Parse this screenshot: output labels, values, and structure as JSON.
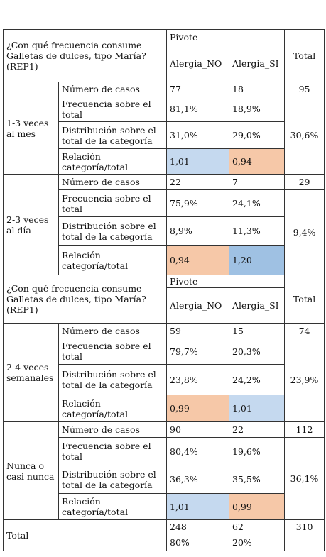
{
  "colors": {
    "light_blue": "#c5d9ef",
    "salmon": "#f6c8a8",
    "mid_blue": "#9fc1e3"
  },
  "blocks": [
    {
      "question": "¿Con qué frecuencia consume Galletas de dulces, tipo María? (REP1)",
      "pivot": "Pivote",
      "col_no": "Alergia_NO",
      "col_si": "Alergia_SI",
      "total": "Total",
      "groups": [
        {
          "label": "1-3 veces al mes",
          "total_pct": "30,6%",
          "rows": [
            {
              "label": "Número de casos",
              "no": "77",
              "si": "18",
              "tot": "95"
            },
            {
              "label": "Frecuencia sobre el total",
              "no": "81,1%",
              "si": "18,9%"
            },
            {
              "label": "Distribución sobre el total de la categoría",
              "no": "31,0%",
              "si": "29,0%"
            },
            {
              "label": "Relación categoría/total",
              "no": "1,01",
              "si": "0,94"
            }
          ]
        },
        {
          "label": "2-3 veces al día",
          "total_pct": "9,4%",
          "rows": [
            {
              "label": "Número de casos",
              "no": "22",
              "si": "7",
              "tot": "29"
            },
            {
              "label": "Frecuencia sobre el total",
              "no": "75,9%",
              "si": "24,1%"
            },
            {
              "label": "Distribución sobre el total de la categoría",
              "no": "8,9%",
              "si": "11,3%"
            },
            {
              "label": "Relación categoría/total",
              "no": "0,94",
              "si": "1,20"
            }
          ]
        }
      ]
    },
    {
      "question": "¿Con qué frecuencia consume Galletas de dulces, tipo María? (REP1)",
      "pivot": "Pivote",
      "col_no": "Alergia_NO",
      "col_si": "Alergia_SI",
      "total": "Total",
      "groups": [
        {
          "label": "2-4 veces semanales",
          "total_pct": "23,9%",
          "rows": [
            {
              "label": "Número de casos",
              "no": "59",
              "si": "15",
              "tot": "74"
            },
            {
              "label": "Frecuencia sobre el total",
              "no": "79,7%",
              "si": "20,3%"
            },
            {
              "label": "Distribución sobre el total de la categoría",
              "no": "23,8%",
              "si": "24,2%"
            },
            {
              "label": "Relación categoría/total",
              "no": "0,99",
              "si": "1,01"
            }
          ]
        },
        {
          "label": "Nunca o casi nunca",
          "total_pct": "36,1%",
          "rows": [
            {
              "label": "Número de casos",
              "no": "90",
              "si": "22",
              "tot": "112"
            },
            {
              "label": "Frecuencia sobre el total",
              "no": "80,4%",
              "si": "19,6%"
            },
            {
              "label": "Distribución sobre el total de la categoría",
              "no": "36,3%",
              "si": "35,5%"
            },
            {
              "label": "Relación categoría/total",
              "no": "1,01",
              "si": "0,99"
            }
          ]
        }
      ]
    }
  ],
  "grand_total": {
    "label": "Total",
    "no": "248",
    "si": "62",
    "tot": "310",
    "no_pct": "80%",
    "si_pct": "20%"
  }
}
